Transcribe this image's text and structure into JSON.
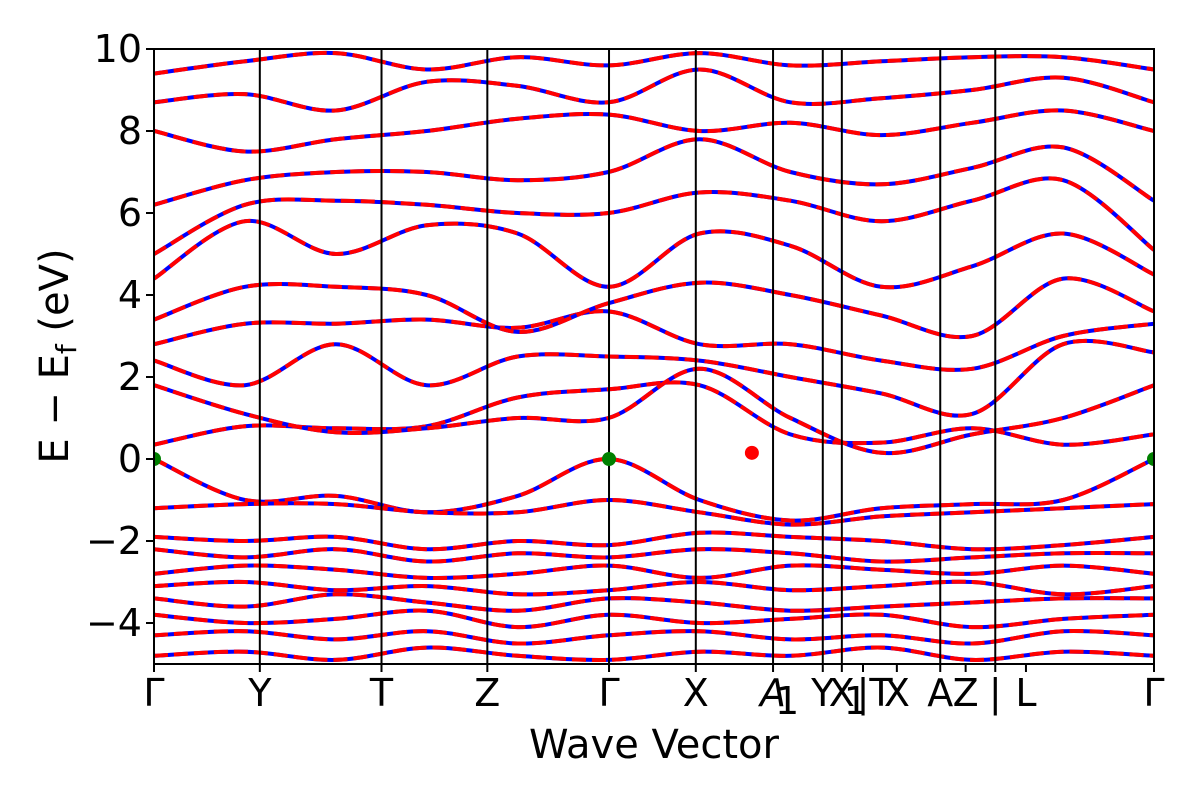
{
  "chart_data": {
    "type": "line",
    "title": "",
    "xlabel": "Wave Vector",
    "ylabel": "E − E",
    "ylabel_subscript": "f",
    "ylabel_unit": " (eV)",
    "ylim": [
      -5,
      10
    ],
    "yticks": [
      {
        "value": 10,
        "label": "10"
      },
      {
        "value": 8,
        "label": "8"
      },
      {
        "value": 6,
        "label": "6"
      },
      {
        "value": 4,
        "label": "4"
      },
      {
        "value": 2,
        "label": "2"
      },
      {
        "value": 0,
        "label": "0"
      },
      {
        "value": -2,
        "label": "−2"
      },
      {
        "value": -4,
        "label": "−4"
      }
    ],
    "xlim": [
      0,
      9.45
    ],
    "kpoints": [
      {
        "x": 0.0,
        "label": "Γ"
      },
      {
        "x": 1.0,
        "label": "Y"
      },
      {
        "x": 2.15,
        "label": "T"
      },
      {
        "x": 3.15,
        "label": "Z"
      },
      {
        "x": 4.3,
        "label": "Γ"
      },
      {
        "x": 5.12,
        "label": "X"
      },
      {
        "x": 5.85,
        "label": "A"
      },
      {
        "x": 5.85,
        "label": "1"
      },
      {
        "x": 6.32,
        "label": "Y"
      },
      {
        "x": 6.5,
        "label": "X"
      },
      {
        "x": 6.5,
        "label": "1"
      },
      {
        "x": 6.7,
        "label": "|"
      },
      {
        "x": 6.7,
        "label": "T"
      },
      {
        "x": 7.02,
        "label": "X"
      },
      {
        "x": 7.43,
        "label": "A"
      },
      {
        "x": 7.67,
        "label": "Z"
      },
      {
        "x": 7.95,
        "label": "|"
      },
      {
        "x": 8.24,
        "label": "L"
      },
      {
        "x": 9.45,
        "label": "Γ"
      }
    ],
    "vlines": [
      1.0,
      2.15,
      3.15,
      4.3,
      5.12,
      5.85,
      6.32,
      6.5,
      7.43,
      7.95
    ],
    "series_style": {
      "primary_color": "#0000ff",
      "overlay_color": "#ff0000",
      "overlay_dashed": true
    },
    "conduction_bands": [
      [
        0.35,
        0.8,
        0.75,
        0.8,
        1.5,
        1.7,
        1.8,
        0.6,
        0.4,
        0.75,
        0.35,
        0.6
      ],
      [
        1.8,
        1.1,
        0.65,
        0.75,
        1.0,
        1.0,
        2.2,
        1.0,
        0.15,
        0.6,
        1.0,
        1.8
      ],
      [
        2.4,
        1.8,
        2.8,
        1.8,
        2.5,
        2.5,
        2.4,
        2.0,
        1.6,
        1.1,
        2.8,
        2.6
      ],
      [
        2.8,
        3.3,
        3.3,
        3.4,
        3.2,
        3.6,
        2.8,
        2.8,
        2.4,
        2.2,
        3.0,
        3.3
      ],
      [
        3.4,
        4.2,
        4.2,
        4.0,
        3.1,
        3.8,
        4.3,
        4.0,
        3.5,
        3.0,
        4.4,
        3.6
      ],
      [
        4.4,
        5.8,
        5.0,
        5.7,
        5.5,
        4.2,
        5.5,
        5.2,
        4.2,
        4.7,
        5.5,
        4.5
      ],
      [
        5.0,
        6.2,
        6.3,
        6.2,
        6.0,
        6.0,
        6.5,
        6.3,
        5.8,
        6.3,
        6.8,
        5.1
      ],
      [
        6.2,
        6.8,
        7.0,
        7.0,
        6.8,
        7.0,
        7.8,
        7.0,
        6.7,
        7.1,
        7.6,
        6.3
      ],
      [
        8.0,
        7.5,
        7.8,
        8.0,
        8.3,
        8.4,
        8.0,
        8.2,
        7.9,
        8.2,
        8.5,
        8.0
      ],
      [
        8.7,
        8.9,
        8.5,
        9.2,
        9.1,
        8.7,
        9.5,
        8.7,
        8.8,
        9.0,
        9.3,
        8.7
      ],
      [
        9.4,
        9.7,
        9.9,
        9.5,
        9.8,
        9.6,
        9.9,
        9.6,
        9.7,
        9.8,
        9.8,
        9.5
      ]
    ],
    "valence_bands": [
      [
        0.0,
        -1.0,
        -0.9,
        -1.3,
        -0.9,
        0.0,
        -1.0,
        -1.5,
        -1.2,
        -1.1,
        -1.0,
        0.0
      ],
      [
        -1.2,
        -1.1,
        -1.1,
        -1.3,
        -1.3,
        -1.0,
        -1.3,
        -1.6,
        -1.4,
        -1.3,
        -1.2,
        -1.1
      ],
      [
        -1.9,
        -2.0,
        -1.9,
        -2.2,
        -2.0,
        -2.1,
        -1.8,
        -1.9,
        -2.0,
        -2.2,
        -2.1,
        -1.9
      ],
      [
        -2.2,
        -2.4,
        -2.2,
        -2.5,
        -2.3,
        -2.4,
        -2.2,
        -2.3,
        -2.5,
        -2.4,
        -2.3,
        -2.3
      ],
      [
        -2.8,
        -2.6,
        -2.7,
        -2.9,
        -2.8,
        -2.6,
        -2.9,
        -2.6,
        -2.7,
        -2.8,
        -2.6,
        -2.8
      ],
      [
        -3.1,
        -3.0,
        -3.2,
        -3.1,
        -3.3,
        -3.2,
        -3.0,
        -3.2,
        -3.1,
        -3.0,
        -3.3,
        -3.1
      ],
      [
        -3.4,
        -3.6,
        -3.3,
        -3.5,
        -3.7,
        -3.4,
        -3.5,
        -3.7,
        -3.6,
        -3.5,
        -3.4,
        -3.4
      ],
      [
        -3.8,
        -4.0,
        -3.9,
        -3.7,
        -4.1,
        -3.8,
        -4.0,
        -3.9,
        -3.8,
        -4.1,
        -3.9,
        -3.8
      ],
      [
        -4.3,
        -4.2,
        -4.4,
        -4.2,
        -4.5,
        -4.3,
        -4.2,
        -4.4,
        -4.3,
        -4.5,
        -4.2,
        -4.3
      ],
      [
        -4.8,
        -4.7,
        -4.9,
        -4.6,
        -4.8,
        -4.9,
        -4.7,
        -4.8,
        -4.6,
        -4.9,
        -4.7,
        -4.8
      ]
    ],
    "markers": [
      {
        "x": 0.0,
        "y": 0.0,
        "color": "#008000",
        "kind": "VBM"
      },
      {
        "x": 4.3,
        "y": 0.0,
        "color": "#008000",
        "kind": "VBM"
      },
      {
        "x": 9.45,
        "y": 0.0,
        "color": "#008000",
        "kind": "VBM"
      },
      {
        "x": 5.65,
        "y": 0.15,
        "color": "#ff0000",
        "kind": "CBM"
      }
    ]
  }
}
